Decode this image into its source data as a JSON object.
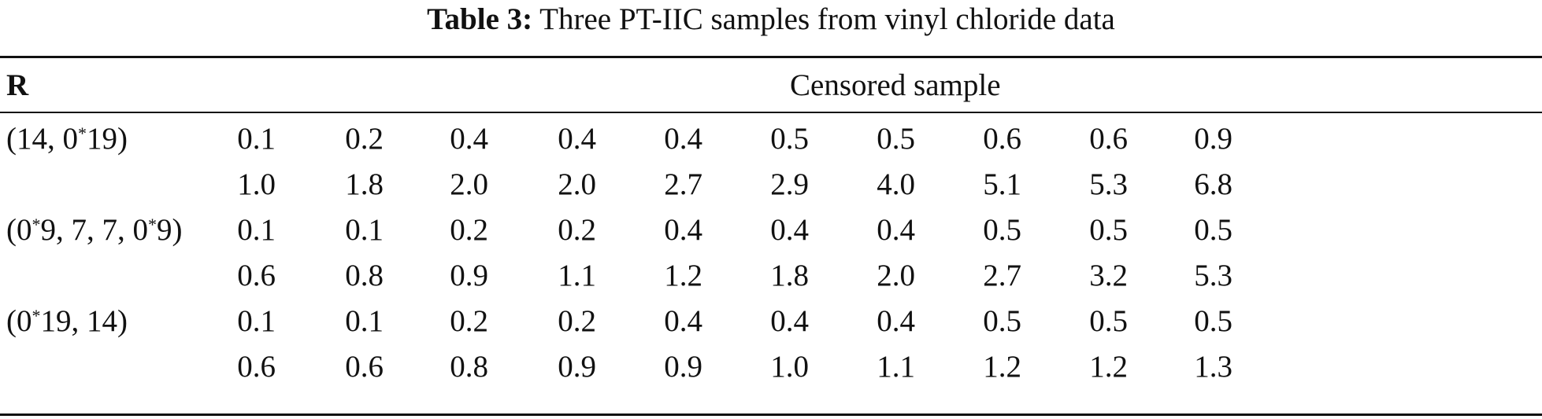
{
  "caption": {
    "label": "Table 3:",
    "title": "Three PT-IIC samples from vinyl chloride data"
  },
  "header": {
    "r": "R",
    "censored_sample": "Censored sample"
  },
  "rows": [
    {
      "r_parts": [
        "(14, 0",
        "*",
        "19)"
      ],
      "values": [
        "0.1",
        "0.2",
        "0.4",
        "0.4",
        "0.4",
        "0.5",
        "0.5",
        "0.6",
        "0.6",
        "0.9"
      ]
    },
    {
      "r_parts": [],
      "values": [
        "1.0",
        "1.8",
        "2.0",
        "2.0",
        "2.7",
        "2.9",
        "4.0",
        "5.1",
        "5.3",
        "6.8"
      ]
    },
    {
      "r_parts": [
        "(0",
        "*",
        "9, 7, 7, 0",
        "*",
        "9)"
      ],
      "values": [
        "0.1",
        "0.1",
        "0.2",
        "0.2",
        "0.4",
        "0.4",
        "0.4",
        "0.5",
        "0.5",
        "0.5"
      ]
    },
    {
      "r_parts": [],
      "values": [
        "0.6",
        "0.8",
        "0.9",
        "1.1",
        "1.2",
        "1.8",
        "2.0",
        "2.7",
        "3.2",
        "5.3"
      ]
    },
    {
      "r_parts": [
        "(0",
        "*",
        "19, 14)"
      ],
      "values": [
        "0.1",
        "0.1",
        "0.2",
        "0.2",
        "0.4",
        "0.4",
        "0.4",
        "0.5",
        "0.5",
        "0.5"
      ]
    },
    {
      "r_parts": [],
      "values": [
        "0.6",
        "0.6",
        "0.8",
        "0.9",
        "0.9",
        "1.0",
        "1.1",
        "1.2",
        "1.2",
        "1.3"
      ]
    }
  ]
}
